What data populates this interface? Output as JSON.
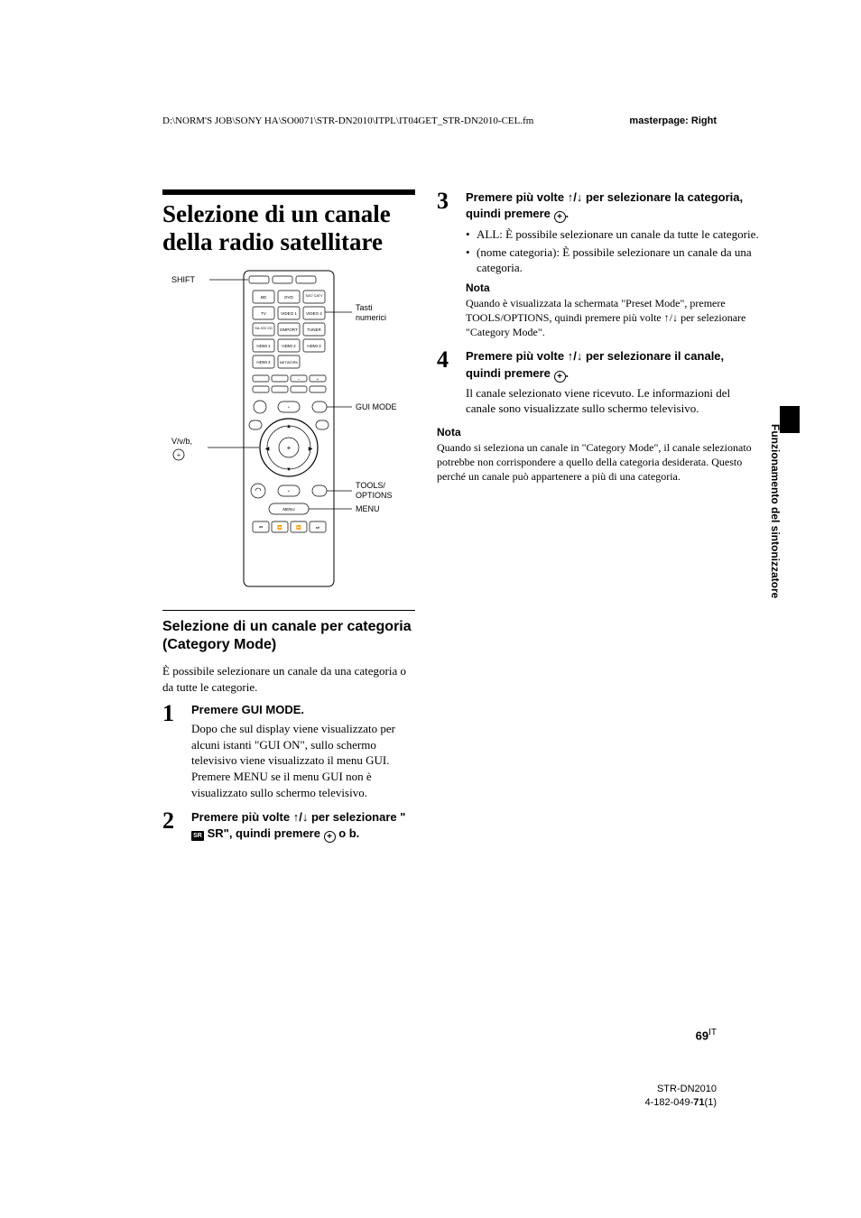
{
  "header": {
    "filepath": "D:\\NORM'S JOB\\SONY HA\\SO0071\\STR-DN2010\\ITPL\\IT04GET_STR-DN2010-CEL.fm",
    "masterpage": "masterpage: Right"
  },
  "title": "Selezione di un canale della radio satellitare",
  "remote": {
    "labels": {
      "shift": "SHIFT",
      "tasti_numerici": "Tasti numerici",
      "gui_mode": "GUI MODE",
      "tools_options": "TOOLS/\nOPTIONS",
      "menu": "MENU",
      "dpad": "V/v/b,"
    },
    "buttons_row1": [
      "BD",
      "DVD",
      "SAT/\nCATV"
    ],
    "buttons_row2": [
      "TV",
      "VIDEO 1",
      "VIDEO 2"
    ],
    "buttons_row3": [
      "SA-CD/\nCD",
      "DMPORT",
      "TUNER"
    ],
    "buttons_row4": [
      "HDMI 1",
      "HDMI 2",
      "HDMI 3"
    ],
    "buttons_row5": [
      "HDMI 4",
      "NETWORK"
    ],
    "menu_btn": "MENU"
  },
  "subhead": "Selezione di un canale per categoria (Category Mode)",
  "intro": "È possibile selezionare un canale da una categoria o da tutte le categorie.",
  "steps": [
    {
      "num": "1",
      "title": "Premere GUI MODE.",
      "text": "Dopo che sul display viene visualizzato per alcuni istanti \"GUI ON\", sullo schermo televisivo viene visualizzato il menu GUI.\nPremere MENU se il menu GUI non è visualizzato sullo schermo televisivo."
    },
    {
      "num": "2",
      "title_pre": "Premere più volte ",
      "title_arrows": "V/v",
      "title_mid": " per selezionare \"",
      "title_sr": "SR",
      "title_post": " SR\", quindi premere ",
      "title_end": " o b."
    },
    {
      "num": "3",
      "title_pre": "Premere più volte ",
      "title_arrows": "V/v",
      "title_mid": " per selezionare la categoria, quindi premere ",
      "title_end": ".",
      "bullets": [
        "ALL: È possibile selezionare un canale da tutte le categorie.",
        "(nome categoria): È possibile selezionare un canale da una categoria."
      ],
      "note_label": "Nota",
      "note": "Quando è visualizzata la schermata \"Preset Mode\", premere TOOLS/OPTIONS, quindi premere più volte V/v per selezionare \"Category Mode\"."
    },
    {
      "num": "4",
      "title_pre": "Premere più volte ",
      "title_arrows": "V/v",
      "title_mid": " per selezionare il canale, quindi premere ",
      "title_end": ".",
      "text": "Il canale selezionato viene ricevuto. Le informazioni del canale sono visualizzate sullo schermo televisivo."
    }
  ],
  "note2_label": "Nota",
  "note2": "Quando si seleziona un canale in \"Category Mode\", il canale selezionato potrebbe non corrispondere a quello della categoria desiderata. Questo perché un canale può appartenere a più di una categoria.",
  "side_tab": "Funzionamento del sintonizzatore",
  "page_number": {
    "main": "69",
    "suffix": "IT"
  },
  "footer": {
    "model": "STR-DN2010",
    "partno": "4-182-049-71(1)"
  }
}
